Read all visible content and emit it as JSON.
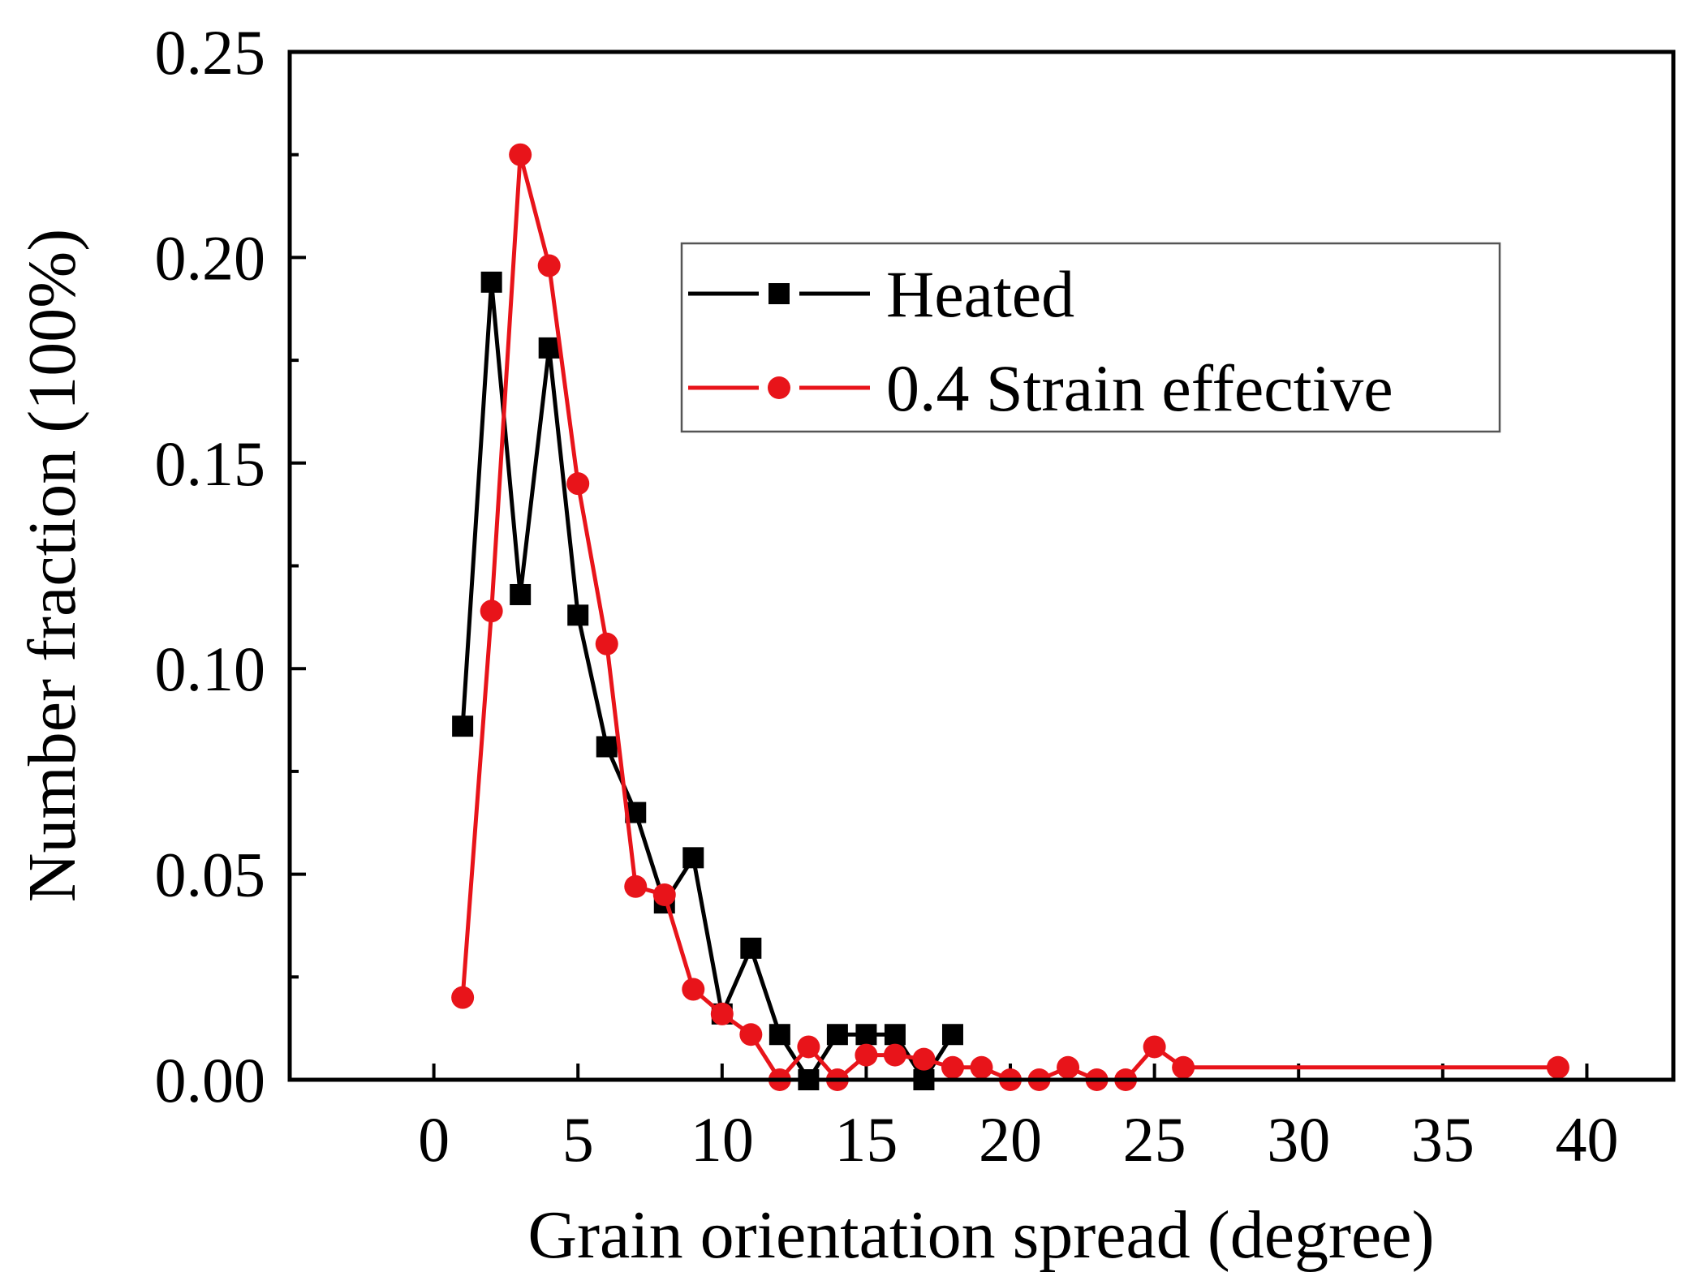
{
  "chart_data": {
    "type": "line",
    "title": "",
    "xlabel": "Grain orientation spread (degree)",
    "ylabel": "Number fraction (100%)",
    "xlim": [
      -5,
      43
    ],
    "ylim": [
      0,
      0.25
    ],
    "xticks": [
      0,
      5,
      10,
      15,
      20,
      25,
      30,
      35,
      40
    ],
    "xtick_labels": [
      "0",
      "5",
      "10",
      "15",
      "20",
      "25",
      "30",
      "35",
      "40"
    ],
    "yticks": [
      0,
      0.05,
      0.1,
      0.15,
      0.2,
      0.25
    ],
    "ytick_labels": [
      "0.00",
      "0.05",
      "0.10",
      "0.15",
      "0.20",
      "0.25"
    ],
    "grid": false,
    "legend_position": "top-right",
    "series": [
      {
        "name": "Heated",
        "color": "#000000",
        "marker": "square",
        "x": [
          1,
          2,
          3,
          4,
          5,
          6,
          7,
          8,
          9,
          10,
          11,
          12,
          13,
          14,
          15,
          16,
          17,
          18
        ],
        "y": [
          0.086,
          0.194,
          0.118,
          0.178,
          0.113,
          0.081,
          0.065,
          0.043,
          0.054,
          0.016,
          0.032,
          0.011,
          0.0,
          0.011,
          0.011,
          0.011,
          0.0,
          0.011
        ]
      },
      {
        "name": "0.4 Strain effective",
        "color": "#e8141a",
        "marker": "circle",
        "x": [
          1,
          2,
          3,
          4,
          5,
          6,
          7,
          8,
          9,
          10,
          11,
          12,
          13,
          14,
          15,
          16,
          17,
          18,
          19,
          20,
          21,
          22,
          23,
          24,
          25,
          26,
          39
        ],
        "y": [
          0.02,
          0.114,
          0.225,
          0.198,
          0.145,
          0.106,
          0.047,
          0.045,
          0.022,
          0.016,
          0.011,
          0.0,
          0.008,
          0.0,
          0.006,
          0.006,
          0.005,
          0.003,
          0.003,
          0.0,
          0.0,
          0.003,
          0.0,
          0.0,
          0.008,
          0.003,
          0.003
        ]
      }
    ]
  }
}
